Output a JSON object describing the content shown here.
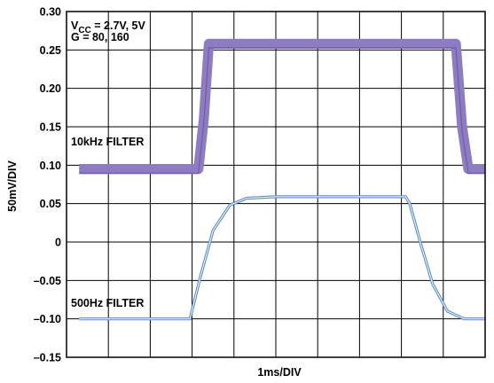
{
  "chart_data": {
    "type": "line",
    "title": "",
    "xlabel": "1ms/DIV",
    "ylabel": "50mV/DIV",
    "xlim": [
      0,
      10
    ],
    "ylim": [
      -0.15,
      0.3
    ],
    "grid": true,
    "yticks": [
      0.3,
      0.25,
      0.2,
      0.15,
      0.1,
      0.05,
      0,
      -0.05,
      -0.1,
      -0.15
    ],
    "ytick_labels": [
      "0.30",
      "0.25",
      "0.20",
      "0.15",
      "0.10",
      "0.05",
      "0",
      "–0.05",
      "–0.10",
      "–0.15"
    ],
    "annotations": {
      "conditions_line1_main": "V",
      "conditions_line1_sub": "CC",
      "conditions_line1_rest": " = 2.7V, 5V",
      "conditions_line2": "G = 80, 160",
      "filter_10k": "10kHz FILTER",
      "filter_500": "500Hz FILTER"
    },
    "series": [
      {
        "color": "#8e7cc3",
        "band_width": 0.013,
        "points": [
          [
            0.3,
            0.095
          ],
          [
            3.15,
            0.095
          ],
          [
            3.28,
            0.16
          ],
          [
            3.4,
            0.258
          ],
          [
            9.3,
            0.258
          ],
          [
            9.45,
            0.15
          ],
          [
            9.6,
            0.095
          ],
          [
            11.1,
            0.095
          ]
        ]
      },
      {
        "color": "#5b8bc6",
        "points": [
          [
            0.3,
            -0.1
          ],
          [
            2.95,
            -0.1
          ],
          [
            3.2,
            -0.045
          ],
          [
            3.5,
            0.015
          ],
          [
            3.9,
            0.048
          ],
          [
            4.3,
            0.057
          ],
          [
            5.0,
            0.059
          ],
          [
            8.1,
            0.059
          ],
          [
            8.2,
            0.05
          ],
          [
            8.45,
            0.0
          ],
          [
            8.75,
            -0.055
          ],
          [
            9.1,
            -0.09
          ],
          [
            9.5,
            -0.1
          ],
          [
            11.1,
            -0.1
          ]
        ]
      }
    ]
  }
}
